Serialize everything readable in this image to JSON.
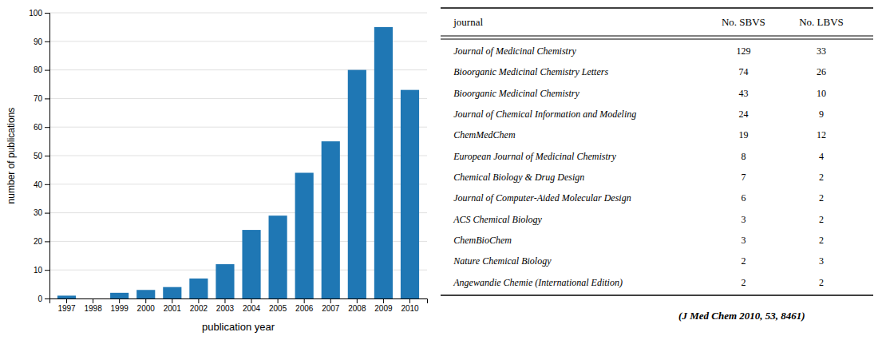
{
  "chart_data": [
    {
      "type": "bar",
      "categories": [
        "1997",
        "1998",
        "1999",
        "2000",
        "2001",
        "2002",
        "2003",
        "2004",
        "2005",
        "2006",
        "2007",
        "2008",
        "2009",
        "2010"
      ],
      "values": [
        1,
        0,
        2,
        3,
        4,
        7,
        12,
        24,
        29,
        44,
        55,
        80,
        95,
        73
      ],
      "xlabel": "publication year",
      "ylabel": "number of publications",
      "ylim": [
        0,
        100
      ],
      "yticks": [
        0,
        10,
        20,
        30,
        40,
        50,
        60,
        70,
        80,
        90,
        100
      ],
      "grid": true
    },
    {
      "type": "table",
      "xlabel": "journal",
      "categories": [
        "Journal of Medicinal Chemistry",
        "Bioorganic Medicinal Chemistry Letters",
        "Bioorganic Medicinal Chemistry",
        "Journal of Chemical Information and Modeling",
        "ChemMedChem",
        "European Journal of Medicinal Chemistry",
        "Chemical Biology & Drug Design",
        "Journal of Computer-Aided Molecular Design",
        "ACS Chemical Biology",
        "ChemBioChem",
        "Nature Chemical Biology",
        "Angewandie Chemie (International Edition)"
      ],
      "series": [
        {
          "name": "No. SBVS",
          "values": [
            129,
            74,
            43,
            24,
            19,
            8,
            7,
            6,
            3,
            3,
            2,
            2
          ]
        },
        {
          "name": "No. LBVS",
          "values": [
            33,
            26,
            10,
            9,
            12,
            4,
            2,
            2,
            2,
            2,
            3,
            2
          ]
        }
      ],
      "data_labels": true,
      "annotations": [
        "(J Med Chem 2010, 53, 8461)"
      ]
    }
  ]
}
